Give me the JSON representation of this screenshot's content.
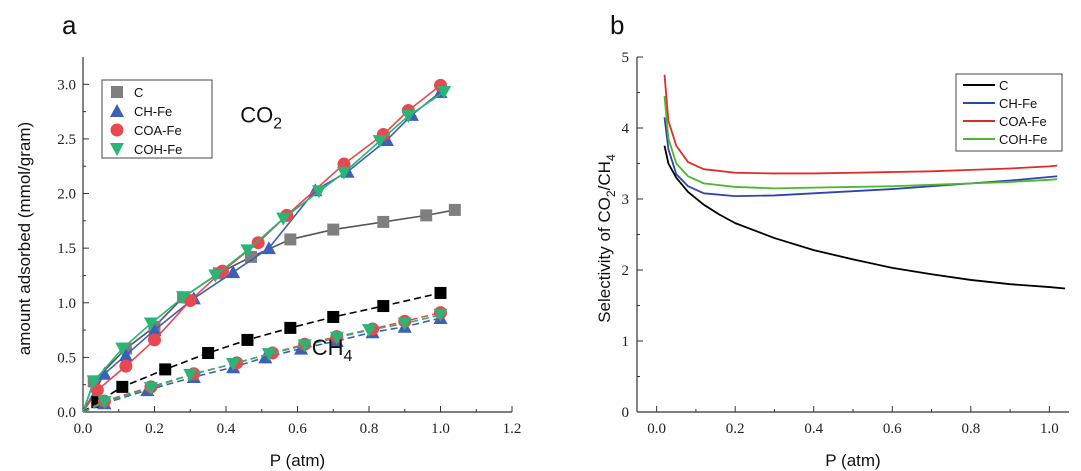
{
  "chart_data": [
    {
      "panel_label": "a",
      "type": "scatter",
      "xlabel": "P (atm)",
      "ylabel": "amount adsorbed (mmol/gram)",
      "xlim": [
        0.0,
        1.2
      ],
      "ylim": [
        0.0,
        3.25
      ],
      "xticks": [
        "0.0",
        "0.2",
        "0.4",
        "0.6",
        "0.8",
        "1.0",
        "1.2"
      ],
      "yticks": [
        "0.0",
        "0.5",
        "1.0",
        "1.5",
        "2.0",
        "2.5",
        "3.0"
      ],
      "legend_position": "top-left",
      "annotations": [
        {
          "base": "CO",
          "sub": "2",
          "x": 0.44,
          "y": 2.65
        },
        {
          "base": "CH",
          "sub": "4",
          "x": 0.64,
          "y": 0.52
        }
      ],
      "series": [
        {
          "name": "C",
          "gas": "CO2",
          "marker": "square",
          "color": "#7f7f7f",
          "line": "solid",
          "x": [
            0.0,
            0.03,
            0.12,
            0.2,
            0.28,
            0.38,
            0.47,
            0.58,
            0.7,
            0.84,
            0.96,
            1.04
          ],
          "y": [
            0.0,
            0.28,
            0.58,
            0.78,
            1.05,
            1.27,
            1.42,
            1.58,
            1.67,
            1.74,
            1.8,
            1.85
          ]
        },
        {
          "name": "CH-Fe",
          "gas": "CO2",
          "marker": "triangle-up",
          "color": "#3d5fb8",
          "line": "solid",
          "x": [
            0.0,
            0.06,
            0.12,
            0.2,
            0.31,
            0.42,
            0.52,
            0.65,
            0.74,
            0.85,
            0.92,
            1.0
          ],
          "y": [
            0.0,
            0.35,
            0.52,
            0.75,
            1.04,
            1.28,
            1.5,
            2.03,
            2.2,
            2.49,
            2.72,
            2.93
          ]
        },
        {
          "name": "COA-Fe",
          "gas": "CO2",
          "marker": "circle",
          "color": "#e8484f",
          "line": "solid",
          "x": [
            0.0,
            0.04,
            0.12,
            0.2,
            0.3,
            0.39,
            0.49,
            0.57,
            0.73,
            0.84,
            0.91,
            1.0
          ],
          "y": [
            0.0,
            0.2,
            0.42,
            0.66,
            1.02,
            1.29,
            1.55,
            1.8,
            2.27,
            2.54,
            2.76,
            2.99
          ]
        },
        {
          "name": "COH-Fe",
          "gas": "CO2",
          "marker": "triangle-down",
          "color": "#2ab576",
          "line": "solid",
          "x": [
            0.0,
            0.03,
            0.11,
            0.19,
            0.28,
            0.37,
            0.46,
            0.56,
            0.66,
            0.73,
            0.83,
            0.91,
            1.01
          ],
          "y": [
            0.0,
            0.28,
            0.58,
            0.81,
            1.05,
            1.25,
            1.48,
            1.77,
            2.02,
            2.19,
            2.48,
            2.71,
            2.93
          ]
        },
        {
          "name": "C",
          "gas": "CH4",
          "marker": "square",
          "color": "#000000",
          "line": "dashed",
          "x": [
            0.0,
            0.04,
            0.11,
            0.23,
            0.35,
            0.46,
            0.58,
            0.7,
            0.84,
            1.0
          ],
          "y": [
            0.0,
            0.09,
            0.23,
            0.39,
            0.54,
            0.66,
            0.77,
            0.87,
            0.97,
            1.09
          ]
        },
        {
          "name": "CH-Fe",
          "gas": "CH4",
          "marker": "triangle-up",
          "color": "#3d5fb8",
          "line": "dashed",
          "x": [
            0.0,
            0.06,
            0.18,
            0.31,
            0.42,
            0.51,
            0.61,
            0.71,
            0.81,
            0.9,
            1.0
          ],
          "y": [
            0.0,
            0.08,
            0.2,
            0.32,
            0.41,
            0.5,
            0.58,
            0.65,
            0.73,
            0.78,
            0.86
          ]
        },
        {
          "name": "COA-Fe",
          "gas": "CH4",
          "marker": "circle",
          "color": "#e8484f",
          "line": "dashed",
          "x": [
            0.0,
            0.06,
            0.19,
            0.31,
            0.43,
            0.53,
            0.62,
            0.71,
            0.81,
            0.9,
            1.0
          ],
          "y": [
            0.0,
            0.1,
            0.23,
            0.35,
            0.45,
            0.54,
            0.62,
            0.69,
            0.76,
            0.83,
            0.91
          ]
        },
        {
          "name": "COH-Fe",
          "gas": "CH4",
          "marker": "triangle-down",
          "color": "#2ab576",
          "line": "dashed",
          "x": [
            0.0,
            0.06,
            0.19,
            0.3,
            0.42,
            0.52,
            0.62,
            0.71,
            0.8,
            0.9,
            1.0
          ],
          "y": [
            0.0,
            0.09,
            0.22,
            0.34,
            0.44,
            0.53,
            0.61,
            0.68,
            0.75,
            0.81,
            0.89
          ]
        }
      ]
    },
    {
      "panel_label": "b",
      "type": "line",
      "xlabel": "P (atm)",
      "ylabel": {
        "base": "Selectivity of CO",
        "sub1": "2",
        "mid": "/CH",
        "sub2": "4"
      },
      "xlim": [
        -0.05,
        1.05
      ],
      "ylim": [
        0,
        5
      ],
      "xticks": [
        "0.0",
        "0.2",
        "0.4",
        "0.6",
        "0.8",
        "1.0"
      ],
      "yticks": [
        "0",
        "1",
        "2",
        "3",
        "4",
        "5"
      ],
      "legend_position": "top-right",
      "series": [
        {
          "name": "C",
          "color": "#000000",
          "x": [
            0.02,
            0.03,
            0.05,
            0.08,
            0.12,
            0.16,
            0.2,
            0.3,
            0.4,
            0.5,
            0.6,
            0.7,
            0.8,
            0.9,
            1.0,
            1.04
          ],
          "y": [
            3.75,
            3.5,
            3.3,
            3.1,
            2.92,
            2.78,
            2.66,
            2.45,
            2.28,
            2.15,
            2.03,
            1.94,
            1.86,
            1.8,
            1.76,
            1.74
          ]
        },
        {
          "name": "CH-Fe",
          "color": "#2e44b0",
          "x": [
            0.02,
            0.03,
            0.05,
            0.08,
            0.12,
            0.2,
            0.3,
            0.4,
            0.5,
            0.6,
            0.7,
            0.8,
            0.9,
            1.0,
            1.02
          ],
          "y": [
            4.15,
            3.7,
            3.35,
            3.18,
            3.08,
            3.04,
            3.05,
            3.08,
            3.11,
            3.14,
            3.18,
            3.22,
            3.26,
            3.31,
            3.32
          ]
        },
        {
          "name": "COA-Fe",
          "color": "#e02b2b",
          "x": [
            0.02,
            0.03,
            0.05,
            0.08,
            0.12,
            0.2,
            0.3,
            0.4,
            0.5,
            0.6,
            0.7,
            0.8,
            0.9,
            1.0,
            1.02
          ],
          "y": [
            4.75,
            4.1,
            3.75,
            3.52,
            3.42,
            3.37,
            3.36,
            3.36,
            3.37,
            3.38,
            3.39,
            3.41,
            3.43,
            3.46,
            3.47
          ]
        },
        {
          "name": "COH-Fe",
          "color": "#4cb82e",
          "x": [
            0.02,
            0.03,
            0.05,
            0.08,
            0.12,
            0.2,
            0.3,
            0.4,
            0.5,
            0.6,
            0.7,
            0.8,
            0.9,
            1.0,
            1.02
          ],
          "y": [
            4.45,
            3.85,
            3.5,
            3.32,
            3.22,
            3.17,
            3.15,
            3.16,
            3.17,
            3.18,
            3.2,
            3.22,
            3.24,
            3.27,
            3.28
          ]
        }
      ]
    }
  ]
}
